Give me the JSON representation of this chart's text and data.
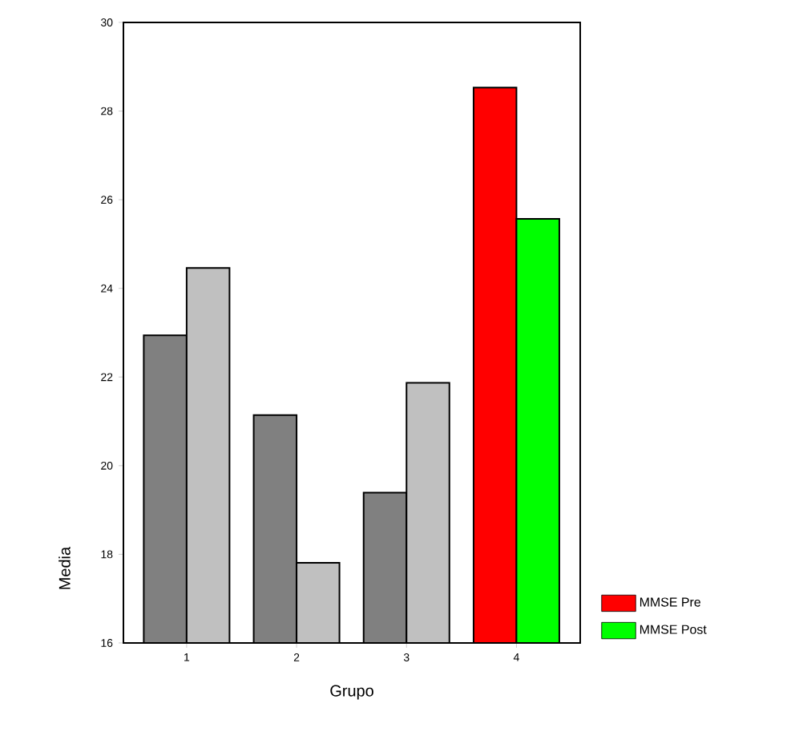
{
  "chart_data": {
    "type": "bar",
    "xlabel": "Grupo",
    "ylabel": "Media",
    "categories": [
      "1",
      "2",
      "3",
      "4"
    ],
    "series": [
      {
        "name": "MMSE Pre",
        "color": "#ff0000",
        "colors": [
          "#808080",
          "#808080",
          "#808080",
          "#ff0000"
        ],
        "values": [
          22.94,
          21.14,
          19.39,
          28.53
        ]
      },
      {
        "name": "MMSE Post",
        "color": "#00ff00",
        "colors": [
          "#c0c0c0",
          "#c0c0c0",
          "#c0c0c0",
          "#00ff00"
        ],
        "values": [
          24.46,
          17.81,
          21.87,
          25.57
        ]
      }
    ],
    "ylim": [
      16,
      30
    ],
    "yticks": [
      16,
      18,
      20,
      22,
      24,
      26,
      28,
      30
    ],
    "grid": false,
    "legend": "right"
  }
}
